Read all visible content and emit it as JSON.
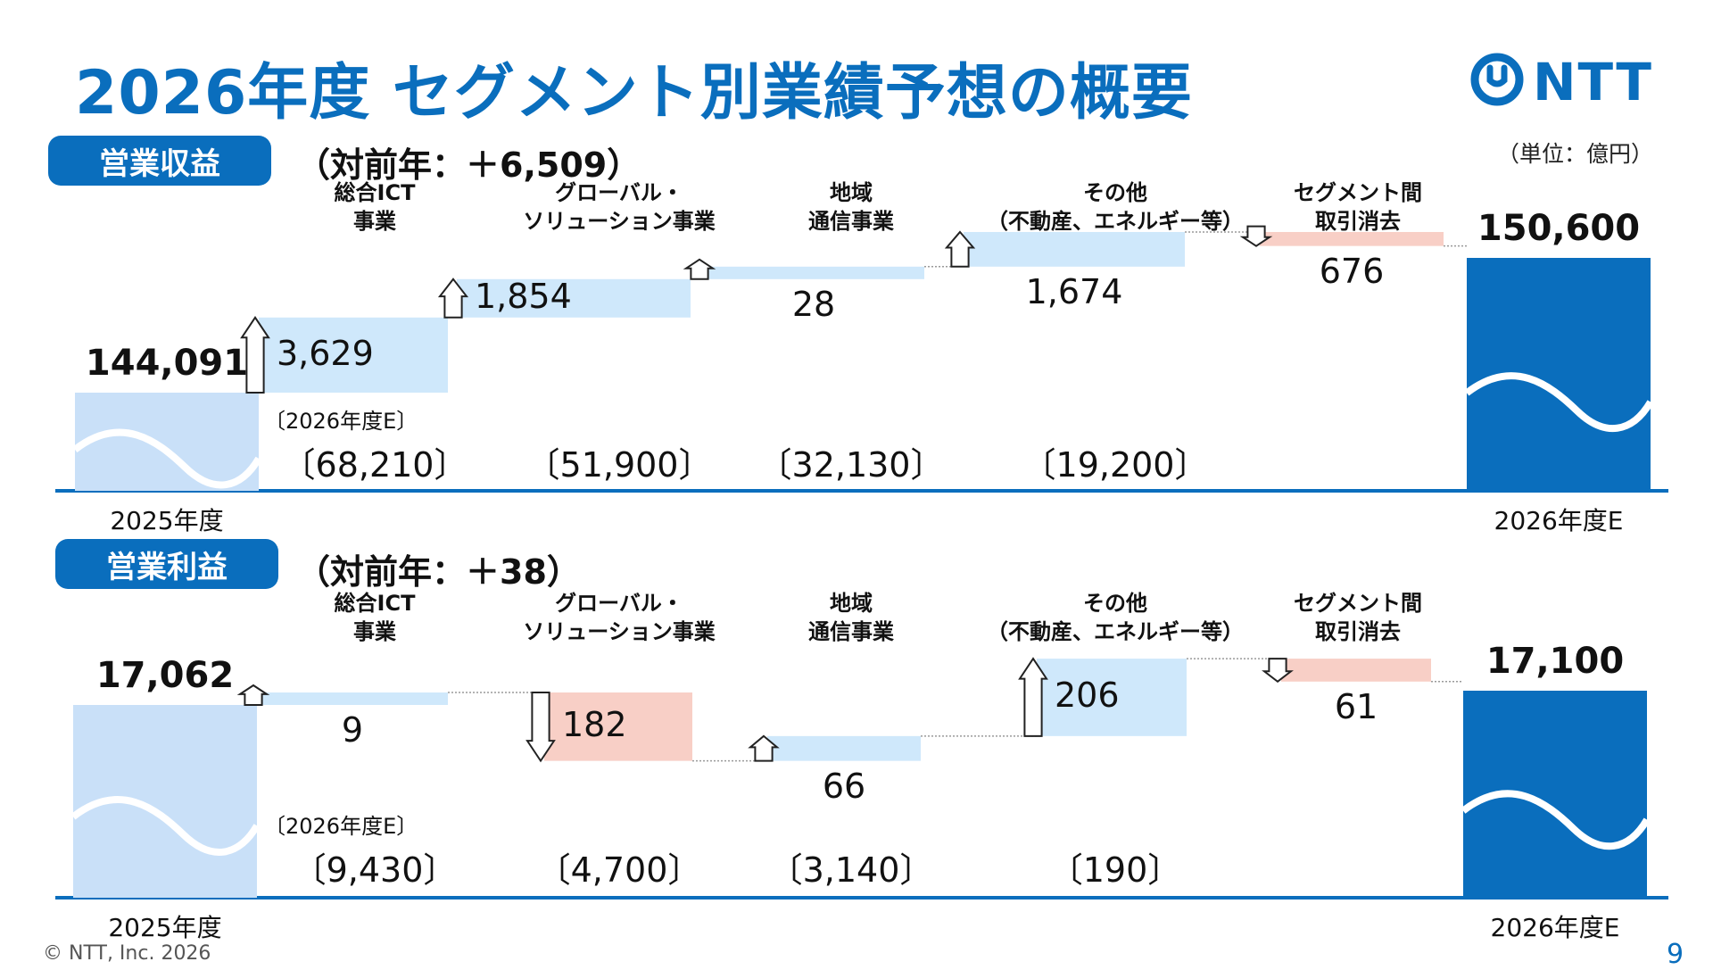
{
  "title": "2026年度 セグメント別業績予想の概要",
  "logo_text": "NTT",
  "unit": "（単位：億円）",
  "colors": {
    "brand": "#0a6ebd",
    "increase": "#cfe8fb",
    "decrease": "#f8cfc6",
    "base_light": "#c9e0f8",
    "base_dark": "#0a6ebd"
  },
  "forecast_tag": "〔2026年度E〕",
  "chart_data": [
    {
      "type": "bar",
      "subtype": "waterfall",
      "metric": "営業収益",
      "change_label": "（対前年：＋6,509）",
      "start": {
        "label": "2025年度",
        "value": 144091,
        "value_label": "144,091"
      },
      "end": {
        "label": "2026年度E",
        "value": 150600,
        "value_label": "150,600"
      },
      "segments": [
        {
          "name_lines": [
            "総合ICT",
            "事業"
          ],
          "change": 3629,
          "change_label": "3,629",
          "direction": "up",
          "forecast_label": "〔68,210〕"
        },
        {
          "name_lines": [
            "グローバル・",
            "ソリューション事業"
          ],
          "change": 1854,
          "change_label": "1,854",
          "direction": "up",
          "forecast_label": "〔51,900〕"
        },
        {
          "name_lines": [
            "地域",
            "通信事業"
          ],
          "change": 28,
          "change_label": "28",
          "direction": "up",
          "forecast_label": "〔32,130〕"
        },
        {
          "name_lines": [
            "その他",
            "（不動産、エネルギー等）"
          ],
          "change": 1674,
          "change_label": "1,674",
          "direction": "up",
          "forecast_label": "〔19,200〕"
        },
        {
          "name_lines": [
            "セグメント間",
            "取引消去"
          ],
          "change": -676,
          "change_label": "676",
          "direction": "down",
          "forecast_label": ""
        }
      ]
    },
    {
      "type": "bar",
      "subtype": "waterfall",
      "metric": "営業利益",
      "change_label": "（対前年：＋38）",
      "start": {
        "label": "2025年度",
        "value": 17062,
        "value_label": "17,062"
      },
      "end": {
        "label": "2026年度E",
        "value": 17100,
        "value_label": "17,100"
      },
      "segments": [
        {
          "name_lines": [
            "総合ICT",
            "事業"
          ],
          "change": 9,
          "change_label": "9",
          "direction": "up",
          "forecast_label": "〔9,430〕"
        },
        {
          "name_lines": [
            "グローバル・",
            "ソリューション事業"
          ],
          "change": -182,
          "change_label": "182",
          "direction": "down",
          "forecast_label": "〔4,700〕"
        },
        {
          "name_lines": [
            "地域",
            "通信事業"
          ],
          "change": 66,
          "change_label": "66",
          "direction": "up",
          "forecast_label": "〔3,140〕"
        },
        {
          "name_lines": [
            "その他",
            "（不動産、エネルギー等）"
          ],
          "change": 206,
          "change_label": "206",
          "direction": "up",
          "forecast_label": "〔190〕"
        },
        {
          "name_lines": [
            "セグメント間",
            "取引消去"
          ],
          "change": -61,
          "change_label": "61",
          "direction": "down",
          "forecast_label": ""
        }
      ]
    }
  ],
  "footer": "© NTT, Inc.  2026",
  "page_number": "9"
}
